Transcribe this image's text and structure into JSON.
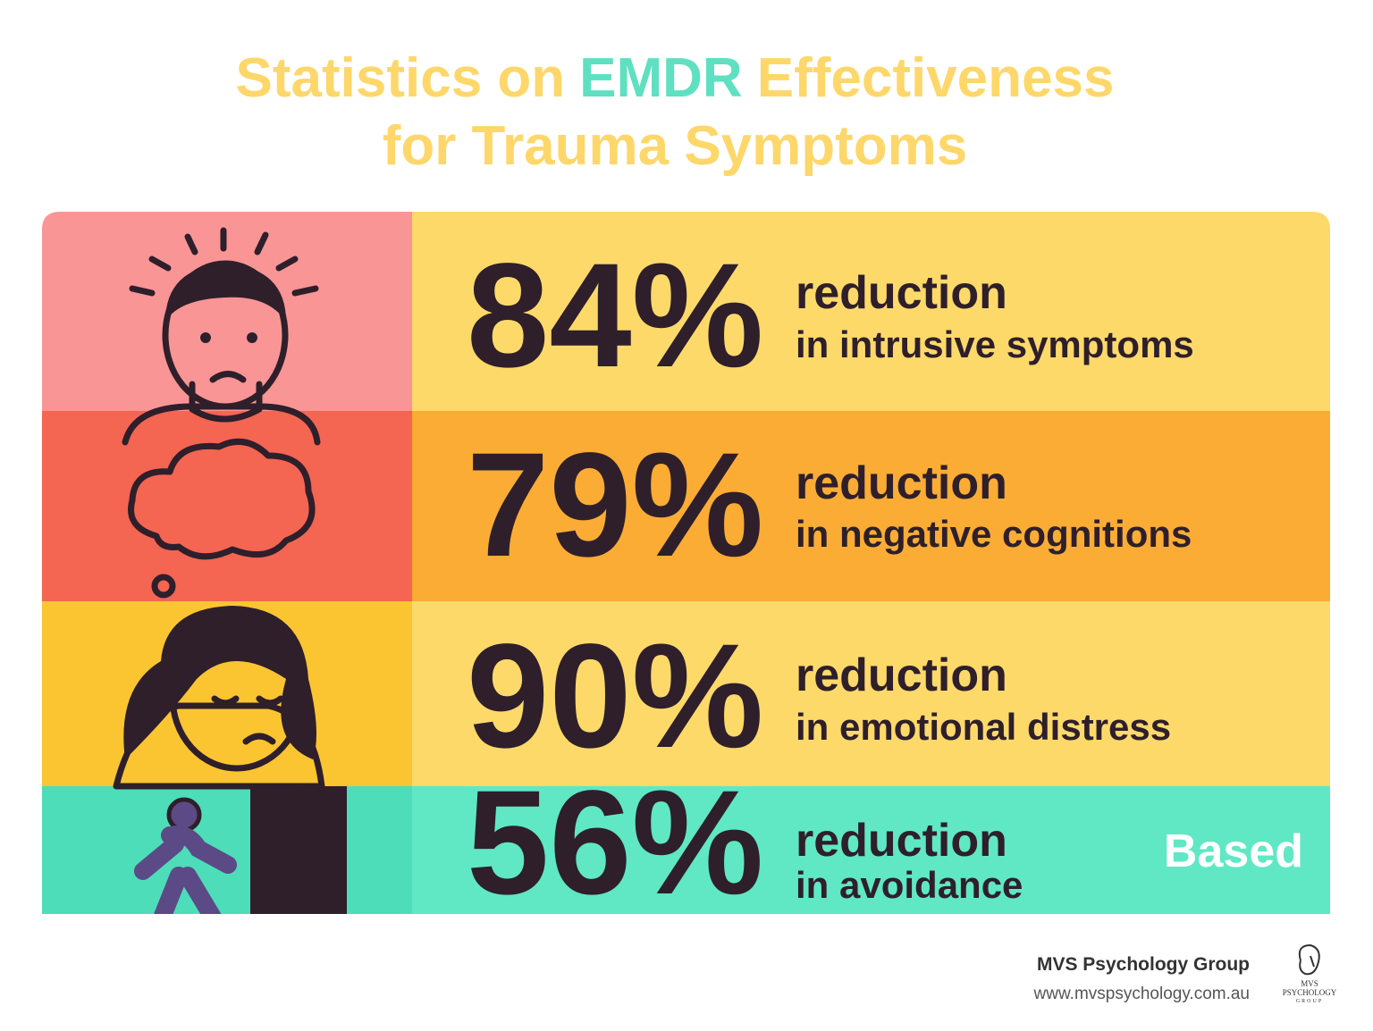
{
  "header": {
    "title_part1": "Statistics on",
    "title_highlight": "EMDR",
    "title_part2": "Effectiveness",
    "title_line2": "for Trauma Symptoms"
  },
  "rows": [
    {
      "value": "84%",
      "label": "reduction",
      "detail": "in intrusive symptoms"
    },
    {
      "value": "79%",
      "label": "reduction",
      "detail": "in negative cognitions"
    },
    {
      "value": "90%",
      "label": "reduction",
      "detail": "in emotional distress"
    },
    {
      "value": "56%",
      "label": "reduction",
      "detail": "in avoidance"
    }
  ],
  "overlay": "Based",
  "footer": {
    "company": "MVS Psychology Group",
    "website": "www.mvspsychology.com.au",
    "logo_line1": "MVS",
    "logo_line2": "PSYCHOLOGY",
    "logo_line3": "GROUP"
  }
}
